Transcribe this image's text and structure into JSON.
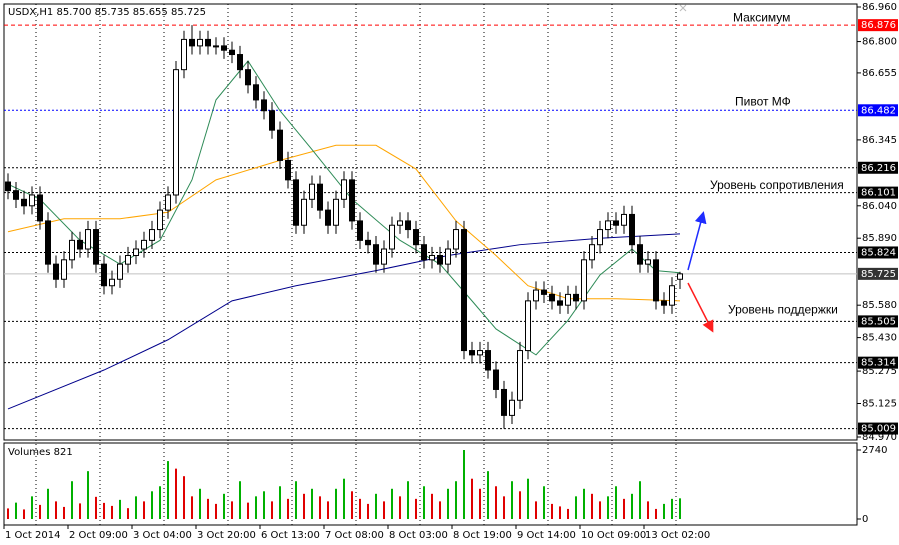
{
  "chart_data": {
    "type": "candlestick",
    "header": "USDX,H1 85.700 85.735 85.655 85.725",
    "open": [
      86.15,
      86.11,
      86.07,
      86.04,
      86.09,
      85.97,
      85.77,
      85.7,
      85.79,
      85.88,
      85.84,
      85.93,
      85.77,
      85.67,
      85.7,
      85.77,
      85.81,
      85.84,
      85.88,
      85.93,
      86.02,
      86.09,
      86.67,
      86.81,
      86.78,
      86.81,
      86.78,
      86.78,
      86.76,
      86.74,
      86.67,
      86.6,
      86.53,
      86.48,
      86.39,
      86.25,
      86.16,
      85.95,
      86.07,
      86.14,
      86.02,
      85.95,
      86.07,
      86.16,
      85.97,
      85.88,
      85.86,
      85.77,
      85.84,
      85.95,
      85.97,
      85.93,
      85.86,
      85.79,
      85.81,
      85.77,
      85.84,
      85.93,
      85.37,
      85.35,
      85.37,
      85.28,
      85.19,
      85.07,
      85.14,
      85.37,
      85.6,
      85.65,
      85.63,
      85.6,
      85.58,
      85.63,
      85.6,
      85.79,
      85.86,
      85.93,
      85.97,
      85.95,
      86.0,
      85.86,
      85.77,
      85.79,
      85.6,
      85.58,
      85.7
    ],
    "high": [
      86.19,
      86.15,
      86.11,
      86.13,
      86.13,
      86.01,
      85.81,
      85.83,
      85.92,
      85.92,
      85.97,
      85.97,
      85.81,
      85.74,
      85.81,
      85.85,
      85.88,
      85.92,
      85.97,
      86.06,
      86.13,
      86.71,
      86.85,
      86.876,
      86.85,
      86.85,
      86.82,
      86.82,
      86.8,
      86.78,
      86.71,
      86.64,
      86.57,
      86.52,
      86.43,
      86.29,
      86.2,
      86.11,
      86.18,
      86.18,
      86.06,
      86.11,
      86.2,
      86.2,
      86.01,
      85.92,
      85.9,
      85.88,
      85.99,
      86.01,
      86.01,
      85.97,
      85.9,
      85.85,
      85.85,
      85.88,
      85.97,
      85.97,
      85.41,
      85.41,
      85.41,
      85.32,
      85.23,
      85.18,
      85.41,
      85.64,
      85.69,
      85.69,
      85.67,
      85.64,
      85.67,
      85.67,
      85.83,
      85.9,
      85.97,
      86.01,
      86.01,
      86.04,
      86.04,
      85.9,
      85.83,
      85.83,
      85.64,
      85.71,
      85.735
    ],
    "low": [
      86.07,
      86.03,
      86.0,
      86.0,
      85.93,
      85.73,
      85.66,
      85.66,
      85.75,
      85.8,
      85.8,
      85.73,
      85.63,
      85.63,
      85.66,
      85.73,
      85.77,
      85.8,
      85.84,
      85.89,
      85.98,
      86.05,
      86.63,
      86.74,
      86.74,
      86.74,
      86.74,
      86.72,
      86.7,
      86.63,
      86.56,
      86.49,
      86.44,
      86.35,
      86.21,
      86.12,
      85.91,
      85.91,
      86.03,
      85.98,
      85.91,
      85.91,
      86.03,
      85.93,
      85.84,
      85.82,
      85.73,
      85.73,
      85.8,
      85.91,
      85.89,
      85.82,
      85.75,
      85.75,
      85.73,
      85.73,
      85.8,
      85.33,
      85.31,
      85.31,
      85.24,
      85.15,
      85.009,
      85.03,
      85.1,
      85.33,
      85.56,
      85.59,
      85.56,
      85.54,
      85.54,
      85.56,
      85.56,
      85.75,
      85.82,
      85.89,
      85.91,
      85.91,
      85.82,
      85.73,
      85.73,
      85.56,
      85.54,
      85.54,
      85.655
    ],
    "close": [
      86.11,
      86.07,
      86.04,
      86.09,
      85.97,
      85.77,
      85.7,
      85.79,
      85.88,
      85.84,
      85.93,
      85.77,
      85.67,
      85.7,
      85.77,
      85.81,
      85.84,
      85.88,
      85.93,
      86.02,
      86.09,
      86.67,
      86.81,
      86.78,
      86.81,
      86.78,
      86.78,
      86.76,
      86.74,
      86.67,
      86.6,
      86.53,
      86.48,
      86.39,
      86.25,
      86.16,
      85.95,
      86.07,
      86.14,
      86.02,
      85.95,
      86.07,
      86.16,
      85.97,
      85.88,
      85.86,
      85.77,
      85.84,
      85.95,
      85.97,
      85.93,
      85.86,
      85.79,
      85.81,
      85.77,
      85.84,
      85.93,
      85.37,
      85.35,
      85.37,
      85.28,
      85.19,
      85.07,
      85.14,
      85.37,
      85.6,
      85.65,
      85.63,
      85.6,
      85.58,
      85.63,
      85.6,
      85.79,
      85.86,
      85.93,
      85.97,
      85.95,
      86.0,
      85.86,
      85.77,
      85.79,
      85.6,
      85.58,
      85.67,
      85.725
    ],
    "up_color": "#ffffff",
    "down_color": "#000000",
    "ylim": [
      84.97,
      86.96
    ],
    "yticks": [
      {
        "value": 86.96,
        "label": "86.960"
      },
      {
        "value": 86.8,
        "label": "86.800"
      },
      86.655,
      86.345,
      {
        "value": 86.04,
        "label": "86.040"
      },
      {
        "value": 85.89,
        "label": "85.890"
      },
      {
        "value": 85.58,
        "label": "85.580"
      },
      {
        "value": 85.43,
        "label": "85.430"
      },
      85.275,
      85.125,
      {
        "value": 84.97,
        "label": "84.970"
      }
    ],
    "grid": true,
    "levels": [
      {
        "value": 86.876,
        "color": "#ff0000",
        "text": "Максимум"
      },
      {
        "value": 86.482,
        "color": "#0000ff",
        "text": "Пивот МФ"
      },
      {
        "value": 86.216,
        "color": "#000000"
      },
      {
        "value": 86.101,
        "color": "#000000",
        "text": "Уровень сопротивления"
      },
      {
        "value": 85.824,
        "color": "#000000"
      },
      {
        "value": 85.505,
        "color": "#000000",
        "text": "Уровень поддержки"
      },
      {
        "value": 85.314,
        "color": "#000000"
      },
      {
        "value": 85.009,
        "color": "#000000"
      }
    ],
    "overlays": [
      {
        "color": "#00008b",
        "x": [
          0,
          12,
          20,
          28,
          36,
          46,
          55,
          64,
          74,
          84
        ],
        "values": [
          85.1,
          85.28,
          85.42,
          85.6,
          85.67,
          85.74,
          85.81,
          85.86,
          85.89,
          85.91
        ]
      },
      {
        "color": "#ffa500",
        "x": [
          0,
          7,
          14,
          20,
          26,
          34,
          41,
          46,
          51,
          56,
          61,
          65,
          70,
          76,
          84
        ],
        "values": [
          85.92,
          85.98,
          85.98,
          86.01,
          86.16,
          86.25,
          86.32,
          86.32,
          86.21,
          85.97,
          85.81,
          85.67,
          85.61,
          85.61,
          85.6
        ]
      },
      {
        "color": "#2e8b57",
        "x": [
          0,
          4,
          9,
          14,
          19,
          23,
          26,
          30,
          34,
          38,
          43,
          49,
          54,
          58,
          61,
          66,
          70,
          74,
          78,
          81,
          84
        ],
        "values": [
          86.14,
          86.07,
          85.88,
          85.77,
          85.88,
          86.16,
          86.53,
          86.71,
          86.48,
          86.3,
          86.07,
          85.88,
          85.77,
          85.6,
          85.47,
          85.35,
          85.51,
          85.72,
          85.84,
          85.74,
          85.73
        ]
      }
    ],
    "xticks": [
      {
        "value": 0,
        "label": "1 Oct 2014"
      },
      {
        "value": 8,
        "label": "2 Oct 09:00"
      },
      {
        "value": 16,
        "label": "3 Oct 04:00"
      },
      {
        "value": 24,
        "label": "3 Oct 20:00"
      },
      {
        "value": 32,
        "label": "6 Oct 13:00"
      },
      {
        "value": 40,
        "label": "7 Oct 08:00"
      },
      {
        "value": 48,
        "label": "8 Oct 03:00"
      },
      {
        "value": 56,
        "label": "8 Oct 19:00"
      },
      {
        "value": 64,
        "label": "9 Oct 14:00"
      },
      {
        "value": 72,
        "label": "10 Oct 09:00"
      },
      {
        "value": 80,
        "label": "13 Oct 02:00"
      }
    ],
    "volume": {
      "title": "Volumes",
      "up_color": "#00b000",
      "down_color": "#e00000",
      "ylim": [
        0,
        2740
      ],
      "yticks": [
        2740,
        0
      ],
      "values": [
        420,
        650,
        380,
        900,
        560,
        1200,
        700,
        480,
        1500,
        620,
        1900,
        880,
        640,
        520,
        760,
        430,
        900,
        700,
        1100,
        1300,
        2300,
        2000,
        1700,
        900,
        1200,
        800,
        600,
        1000,
        700,
        1500,
        650,
        900,
        1100,
        700,
        1300,
        800,
        1500,
        1000,
        1200,
        900,
        700,
        1200,
        1600,
        1100,
        800,
        600,
        1000,
        700,
        1200,
        900,
        1500,
        800,
        1300,
        1000,
        700,
        1200,
        1500,
        2740,
        1600,
        1200,
        1900,
        1300,
        900,
        1500,
        1100,
        1600,
        700,
        1300,
        600,
        500,
        400,
        900,
        1200,
        1000,
        700,
        900,
        1300,
        800,
        1000,
        1500,
        700,
        400,
        600,
        800,
        821
      ]
    }
  }
}
